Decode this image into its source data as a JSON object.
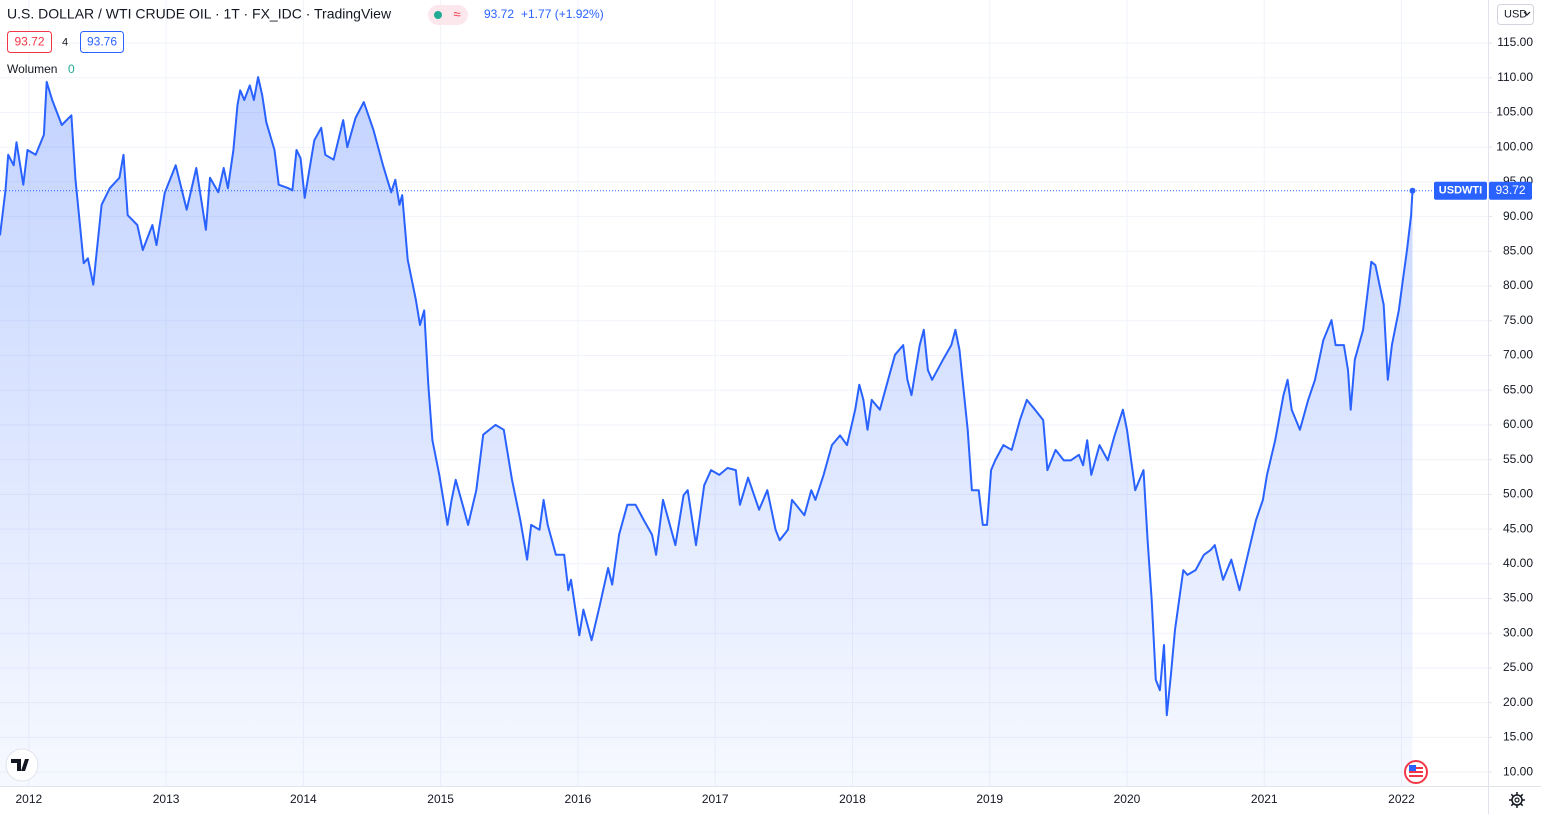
{
  "header": {
    "badge": "≈",
    "last": "93.72",
    "change": "+1.77 (+1.92%)",
    "bid": "93.72",
    "spread": "4",
    "ask": "93.76",
    "volume_label": "Wolumen",
    "volume_value": "0",
    "currency": "USD"
  },
  "chart_data": {
    "type": "area",
    "title": "U.S. DOLLAR / WTI CRUDE OIL · 1T · FX_IDC · TradingView",
    "x": [
      2011.79,
      2011.83,
      2011.85,
      2011.89,
      2011.91,
      2011.96,
      2011.99,
      2012.05,
      2012.11,
      2012.13,
      2012.17,
      2012.24,
      2012.31,
      2012.34,
      2012.4,
      2012.43,
      2012.47,
      2012.53,
      2012.59,
      2012.66,
      2012.69,
      2012.72,
      2012.79,
      2012.83,
      2012.9,
      2012.93,
      2012.99,
      2013.07,
      2013.15,
      2013.22,
      2013.29,
      2013.32,
      2013.38,
      2013.42,
      2013.45,
      2013.49,
      2013.52,
      2013.54,
      2013.57,
      2013.61,
      2013.64,
      2013.67,
      2013.7,
      2013.73,
      2013.79,
      2013.82,
      2013.89,
      2013.92,
      2013.95,
      2013.98,
      2014.01,
      2014.08,
      2014.13,
      2014.16,
      2014.22,
      2014.29,
      2014.32,
      2014.38,
      2014.44,
      2014.51,
      2014.58,
      2014.64,
      2014.67,
      2014.7,
      2014.72,
      2014.76,
      2014.82,
      2014.85,
      2014.88,
      2014.91,
      2014.94,
      2014.99,
      2015.05,
      2015.08,
      2015.11,
      2015.17,
      2015.2,
      2015.26,
      2015.31,
      2015.4,
      2015.46,
      2015.52,
      2015.58,
      2015.63,
      2015.66,
      2015.72,
      2015.75,
      2015.78,
      2015.84,
      2015.9,
      2015.93,
      2015.95,
      2016.01,
      2016.04,
      2016.1,
      2016.16,
      2016.22,
      2016.25,
      2016.3,
      2016.36,
      2016.42,
      2016.48,
      2016.54,
      2016.57,
      2016.62,
      2016.68,
      2016.71,
      2016.77,
      2016.8,
      2016.86,
      2016.92,
      2016.97,
      2017.03,
      2017.09,
      2017.15,
      2017.18,
      2017.24,
      2017.32,
      2017.38,
      2017.44,
      2017.47,
      2017.53,
      2017.56,
      2017.65,
      2017.7,
      2017.73,
      2017.79,
      2017.85,
      2017.91,
      2017.96,
      2018.02,
      2018.05,
      2018.08,
      2018.11,
      2018.14,
      2018.2,
      2018.26,
      2018.31,
      2018.37,
      2018.4,
      2018.43,
      2018.49,
      2018.52,
      2018.55,
      2018.58,
      2018.66,
      2018.72,
      2018.75,
      2018.78,
      2018.81,
      2018.84,
      2018.87,
      2018.92,
      2018.95,
      2018.98,
      2019.01,
      2019.04,
      2019.1,
      2019.16,
      2019.22,
      2019.27,
      2019.33,
      2019.39,
      2019.42,
      2019.48,
      2019.54,
      2019.59,
      2019.65,
      2019.68,
      2019.71,
      2019.74,
      2019.8,
      2019.86,
      2019.91,
      2019.97,
      2020.0,
      2020.06,
      2020.12,
      2020.15,
      2020.18,
      2020.21,
      2020.24,
      2020.27,
      2020.29,
      2020.32,
      2020.35,
      2020.41,
      2020.44,
      2020.5,
      2020.56,
      2020.61,
      2020.64,
      2020.7,
      2020.76,
      2020.82,
      2020.88,
      2020.94,
      2020.99,
      2021.02,
      2021.08,
      2021.14,
      2021.17,
      2021.2,
      2021.26,
      2021.32,
      2021.37,
      2021.43,
      2021.49,
      2021.52,
      2021.58,
      2021.61,
      2021.63,
      2021.66,
      2021.72,
      2021.78,
      2021.81,
      2021.87,
      2021.9,
      2021.93,
      2021.98,
      2022.01,
      2022.04,
      2022.07,
      2022.08
    ],
    "series": [
      {
        "name": "USDWTI",
        "color": "#2962ff",
        "values": [
          87.3,
          93.8,
          98.9,
          97.4,
          100.7,
          94.6,
          99.6,
          98.9,
          101.8,
          109.4,
          106.8,
          103.2,
          104.6,
          95.3,
          83.3,
          84.0,
          80.2,
          91.7,
          94.1,
          95.6,
          98.9,
          90.2,
          88.8,
          85.2,
          88.8,
          85.9,
          93.4,
          97.4,
          91.0,
          97.0,
          88.1,
          95.6,
          93.5,
          97.0,
          94.1,
          99.6,
          106.1,
          108.2,
          106.8,
          108.9,
          106.8,
          110.1,
          107.5,
          103.6,
          99.6,
          94.6,
          94.1,
          93.8,
          99.6,
          98.4,
          92.7,
          101.0,
          102.8,
          98.9,
          98.2,
          103.9,
          100.0,
          104.2,
          106.5,
          102.5,
          97.4,
          93.5,
          95.3,
          91.7,
          93.1,
          83.8,
          78.0,
          74.4,
          76.5,
          65.8,
          57.8,
          52.8,
          45.6,
          49.2,
          52.1,
          47.8,
          45.6,
          50.6,
          58.6,
          60.0,
          59.3,
          52.1,
          46.3,
          40.6,
          45.6,
          44.9,
          49.2,
          45.6,
          41.3,
          41.3,
          36.2,
          37.7,
          29.7,
          33.4,
          29.0,
          34.1,
          39.4,
          37.0,
          44.2,
          48.5,
          48.5,
          46.3,
          44.2,
          41.3,
          49.2,
          44.9,
          42.7,
          49.9,
          50.6,
          42.7,
          51.3,
          53.5,
          52.8,
          53.8,
          53.5,
          48.5,
          52.4,
          47.8,
          50.6,
          44.9,
          43.4,
          44.9,
          49.2,
          47.0,
          50.6,
          49.2,
          52.8,
          57.1,
          58.5,
          57.1,
          62.2,
          65.8,
          63.6,
          59.3,
          63.6,
          62.2,
          66.5,
          70.1,
          71.5,
          66.5,
          64.3,
          71.5,
          73.7,
          67.9,
          66.5,
          69.4,
          71.5,
          73.7,
          70.8,
          65.0,
          59.3,
          50.6,
          50.6,
          45.6,
          45.6,
          53.5,
          54.9,
          57.1,
          56.4,
          60.7,
          63.6,
          62.2,
          60.7,
          53.5,
          56.4,
          54.9,
          54.9,
          55.7,
          54.2,
          57.8,
          52.8,
          57.1,
          54.9,
          58.5,
          62.2,
          59.3,
          50.6,
          53.5,
          43.4,
          34.8,
          23.3,
          21.8,
          28.3,
          18.2,
          24.0,
          30.5,
          39.1,
          38.4,
          39.1,
          41.3,
          42.0,
          42.7,
          37.7,
          40.6,
          36.2,
          41.3,
          46.3,
          49.2,
          52.8,
          57.8,
          64.3,
          66.5,
          62.2,
          59.3,
          63.6,
          66.5,
          72.2,
          75.1,
          71.5,
          71.5,
          67.9,
          62.2,
          69.4,
          73.7,
          83.5,
          83.0,
          77.3,
          66.5,
          71.5,
          76.5,
          80.9,
          85.2,
          90.2,
          93.72
        ]
      }
    ],
    "xlim": [
      2011.79,
      2022.63
    ],
    "xticks": [
      2012,
      2013,
      2014,
      2015,
      2016,
      2017,
      2018,
      2019,
      2020,
      2021,
      2022
    ],
    "ylim": [
      8,
      121.2
    ],
    "yticks": [
      {
        "value": 10,
        "label": "10.00"
      },
      {
        "value": 15,
        "label": "15.00"
      },
      {
        "value": 20,
        "label": "20.00"
      },
      {
        "value": 25,
        "label": "25.00"
      },
      {
        "value": 30,
        "label": "30.00"
      },
      {
        "value": 35,
        "label": "35.00"
      },
      {
        "value": 40,
        "label": "40.00"
      },
      {
        "value": 45,
        "label": "45.00"
      },
      {
        "value": 50,
        "label": "50.00"
      },
      {
        "value": 55,
        "label": "55.00"
      },
      {
        "value": 60,
        "label": "60.00"
      },
      {
        "value": 65,
        "label": "65.00"
      },
      {
        "value": 70,
        "label": "70.00"
      },
      {
        "value": 75,
        "label": "75.00"
      },
      {
        "value": 80,
        "label": "80.00"
      },
      {
        "value": 85,
        "label": "85.00"
      },
      {
        "value": 90,
        "label": "90.00"
      },
      {
        "value": 95,
        "label": "95.00"
      },
      {
        "value": 100,
        "label": "100.00"
      },
      {
        "value": 105,
        "label": "105.00"
      },
      {
        "value": 110,
        "label": "110.00"
      },
      {
        "value": 115,
        "label": "115.00"
      }
    ],
    "grid": true
  }
}
